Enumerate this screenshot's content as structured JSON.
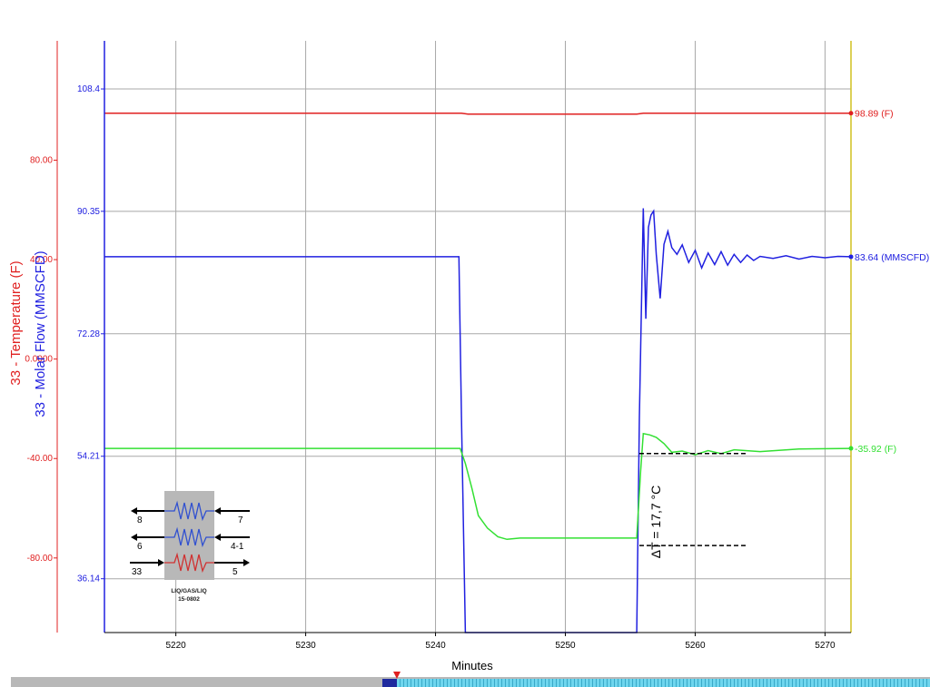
{
  "chart_data": {
    "type": "line",
    "xlabel": "Minutes",
    "xlim": [
      5214.5,
      5272
    ],
    "x_ticks": [
      5220,
      5230,
      5240,
      5250,
      5260,
      5270
    ],
    "left_axis_temperature": {
      "label": "33 - Temperature (F)",
      "color": "#e02020",
      "ylim": [
        -110,
        128
      ],
      "ticks": [
        "80.00",
        "40.00",
        "0.0000",
        "-40.00",
        "-80.00"
      ],
      "tick_values": [
        80,
        40,
        0,
        -40,
        -80
      ]
    },
    "left_axis_flow": {
      "label": "33 - Molar Flow (MMSCFD)",
      "color": "#2020e0",
      "ylim": [
        28.2,
        115.5
      ],
      "ticks": [
        "108.4",
        "90.35",
        "72.28",
        "54.21",
        "36.14"
      ],
      "tick_values": [
        108.4,
        90.35,
        72.28,
        54.21,
        36.14
      ]
    },
    "series": [
      {
        "name": "98.89 (F)",
        "axis": "temperature",
        "color": "#e02020",
        "x": [
          5214.5,
          5242,
          5242.5,
          5255.5,
          5256,
          5272
        ],
        "y": [
          98.89,
          98.89,
          98.5,
          98.5,
          98.89,
          98.89
        ]
      },
      {
        "name": "83.64 (MMSCFD)",
        "axis": "flow",
        "color": "#2020e0",
        "x": [
          5214.5,
          5241.8,
          5242,
          5242.3,
          5255.5,
          5255.7,
          5256.0,
          5256.2,
          5256.4,
          5256.6,
          5256.8,
          5257.0,
          5257.3,
          5257.6,
          5257.9,
          5258.2,
          5258.6,
          5259.0,
          5259.5,
          5260.0,
          5260.5,
          5261.0,
          5261.5,
          5262.0,
          5262.5,
          5263.0,
          5263.5,
          5264.0,
          5264.5,
          5265.0,
          5266.0,
          5267.0,
          5268.0,
          5269.0,
          5270.0,
          5271.0,
          5272.0
        ],
        "y": [
          83.64,
          83.64,
          60.0,
          27.0,
          27.0,
          60.0,
          90.8,
          74.5,
          88.0,
          89.8,
          90.4,
          84.0,
          77.5,
          85.5,
          87.4,
          85.0,
          84.0,
          85.4,
          82.8,
          84.6,
          82.0,
          84.2,
          82.5,
          84.4,
          82.4,
          84.0,
          82.8,
          83.9,
          83.1,
          83.7,
          83.4,
          83.8,
          83.3,
          83.7,
          83.5,
          83.7,
          83.64
        ]
      },
      {
        "name": "-35.92 (F)",
        "axis": "temperature",
        "color": "#33e033",
        "x": [
          5214.5,
          5241.9,
          5242.3,
          5242.8,
          5243.3,
          5244.0,
          5244.8,
          5245.5,
          5246.5,
          5255.5,
          5255.8,
          5256.0,
          5256.5,
          5257.0,
          5257.6,
          5258.2,
          5259.0,
          5260.0,
          5261.0,
          5262.0,
          5263.0,
          5265.0,
          5268.0,
          5272.0
        ],
        "y": [
          -35.92,
          -35.92,
          -42.0,
          -52.0,
          -63.0,
          -68.0,
          -71.5,
          -72.5,
          -72.0,
          -72.0,
          -45.0,
          -30.0,
          -30.5,
          -31.5,
          -34.0,
          -37.5,
          -37.0,
          -38.5,
          -36.8,
          -38.0,
          -36.5,
          -37.2,
          -36.2,
          -35.92
        ]
      }
    ],
    "annotations": [
      {
        "text": "ΔT = 17,7 °C",
        "x": 5257.3,
        "y": -52.0
      }
    ],
    "reference_lines": [
      {
        "x_start": 5255.7,
        "x_end": 5264.0,
        "y": -38.0,
        "axis": "temperature"
      },
      {
        "x_start": 5255.7,
        "x_end": 5264.0,
        "y": -75.0,
        "axis": "temperature"
      }
    ],
    "grid": true
  },
  "exchanger_icon": {
    "left_labels": [
      "8",
      "6",
      "33"
    ],
    "right_labels": [
      "7",
      "4-1",
      "5"
    ],
    "caption_line1": "LIQ/GAS/LIQ",
    "caption_line2": "15-0802"
  }
}
